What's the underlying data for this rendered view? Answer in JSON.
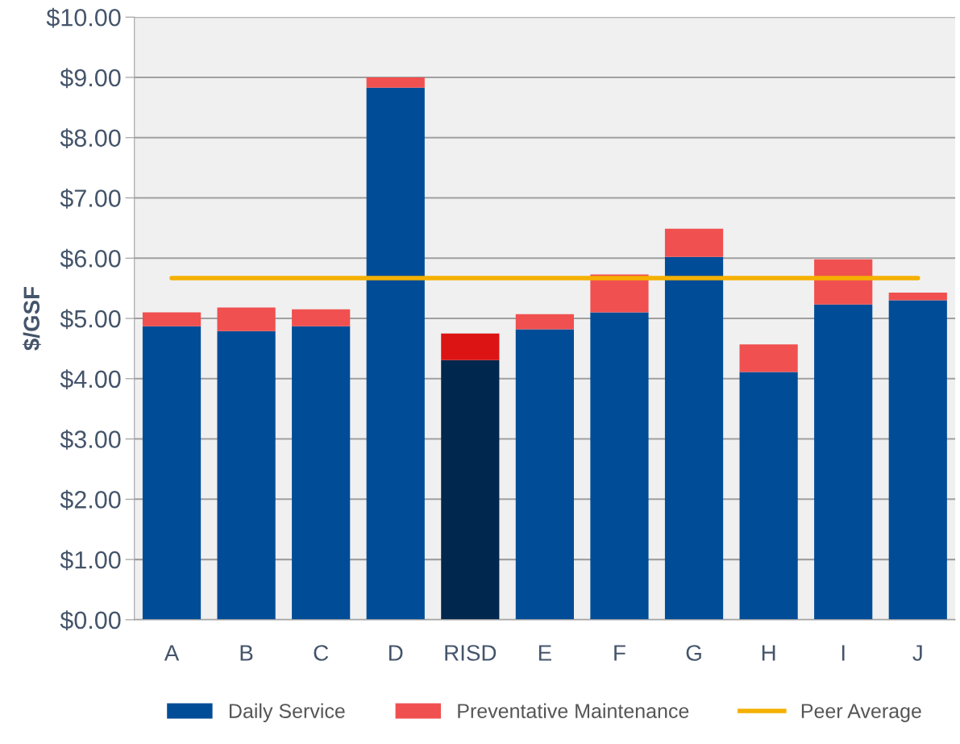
{
  "chart_data": {
    "type": "bar",
    "stacked": true,
    "ylabel": "$/GSF",
    "categories": [
      "A",
      "B",
      "C",
      "D",
      "RISD",
      "E",
      "F",
      "G",
      "H",
      "I",
      "J"
    ],
    "series": [
      {
        "name": "Daily Service",
        "color": "#004c97",
        "colors": [
          "#004c97",
          "#004c97",
          "#004c97",
          "#004c97",
          "#00274d",
          "#004c97",
          "#004c97",
          "#004c97",
          "#004c97",
          "#004c97",
          "#004c97"
        ],
        "values": [
          4.87,
          4.79,
          4.87,
          8.83,
          4.31,
          4.82,
          5.1,
          6.02,
          4.11,
          5.23,
          5.3
        ]
      },
      {
        "name": "Preventative Maintenance",
        "color": "#f05050",
        "colors": [
          "#f05050",
          "#f05050",
          "#f05050",
          "#f05050",
          "#dc1414",
          "#f05050",
          "#f05050",
          "#f05050",
          "#f05050",
          "#f05050",
          "#f05050"
        ],
        "values": [
          0.23,
          0.39,
          0.28,
          0.17,
          0.44,
          0.25,
          0.63,
          0.47,
          0.46,
          0.75,
          0.13
        ]
      }
    ],
    "ref_lines": [
      {
        "axis": "y",
        "value": 5.67,
        "label": "Peer Average",
        "color": "#f5b000"
      }
    ],
    "ylim": [
      0,
      10
    ],
    "yticks": [
      {
        "value": 0,
        "label": "$0.00"
      },
      {
        "value": 1,
        "label": "$1.00"
      },
      {
        "value": 2,
        "label": "$2.00"
      },
      {
        "value": 3,
        "label": "$3.00"
      },
      {
        "value": 4,
        "label": "$4.00"
      },
      {
        "value": 5,
        "label": "$5.00"
      },
      {
        "value": 6,
        "label": "$6.00"
      },
      {
        "value": 7,
        "label": "$7.00"
      },
      {
        "value": 8,
        "label": "$8.00"
      },
      {
        "value": 9,
        "label": "$9.00"
      },
      {
        "value": 10,
        "label": "$10.00"
      }
    ],
    "grid": "y",
    "legend": "bottom"
  }
}
